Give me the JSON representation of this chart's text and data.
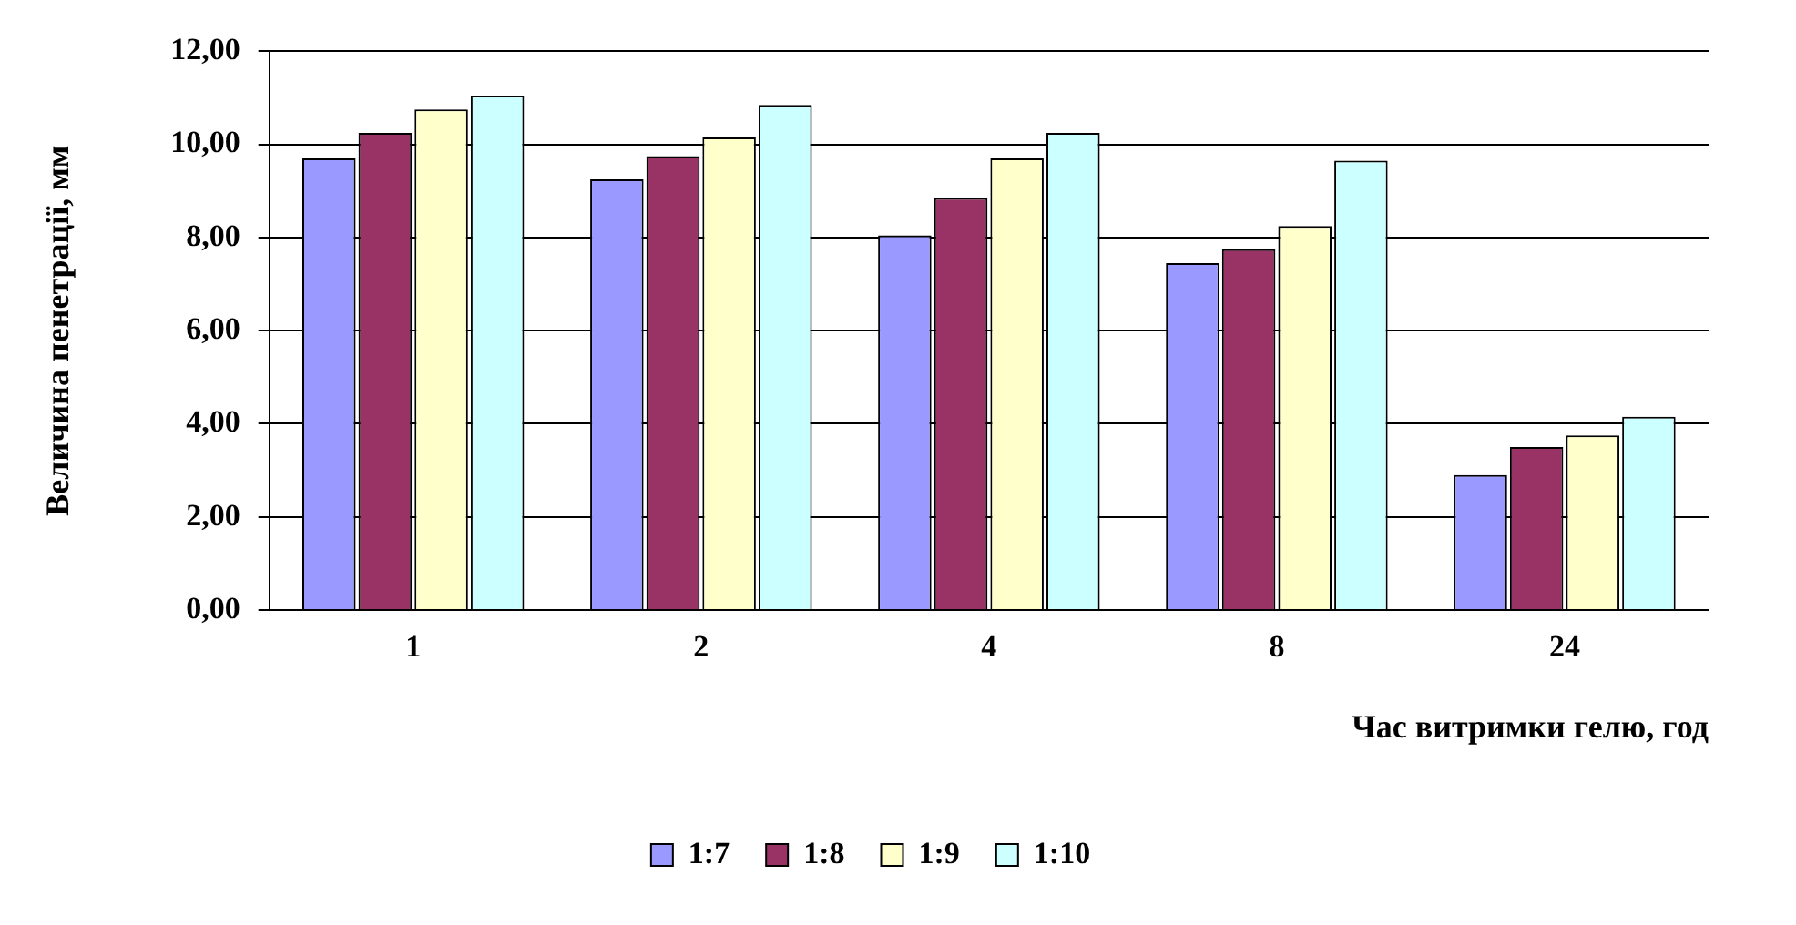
{
  "chart_data": {
    "type": "bar",
    "xlabel": "Час витримки гелю, год",
    "ylabel": "Величина пенетрації, мм",
    "categories": [
      "1",
      "2",
      "4",
      "8",
      "24"
    ],
    "series": [
      {
        "name": "1:7",
        "color": "#9999ff",
        "values": [
          9.7,
          9.25,
          8.05,
          7.45,
          2.9
        ]
      },
      {
        "name": "1:8",
        "color": "#993366",
        "values": [
          10.25,
          9.75,
          8.85,
          7.75,
          3.5
        ]
      },
      {
        "name": "1:9",
        "color": "#ffffcc",
        "values": [
          10.75,
          10.15,
          9.7,
          8.25,
          3.75
        ]
      },
      {
        "name": "1:10",
        "color": "#ccffff",
        "values": [
          11.05,
          10.85,
          10.25,
          9.65,
          4.15
        ]
      }
    ],
    "ylim": [
      0,
      12
    ],
    "yticks": [
      {
        "value": 0,
        "label": "0,00"
      },
      {
        "value": 2,
        "label": "2,00"
      },
      {
        "value": 4,
        "label": "4,00"
      },
      {
        "value": 6,
        "label": "6,00"
      },
      {
        "value": 8,
        "label": "8,00"
      },
      {
        "value": 10,
        "label": "10,00"
      },
      {
        "value": 12,
        "label": "12,00"
      }
    ],
    "grid": "y",
    "legend": "bottom"
  }
}
